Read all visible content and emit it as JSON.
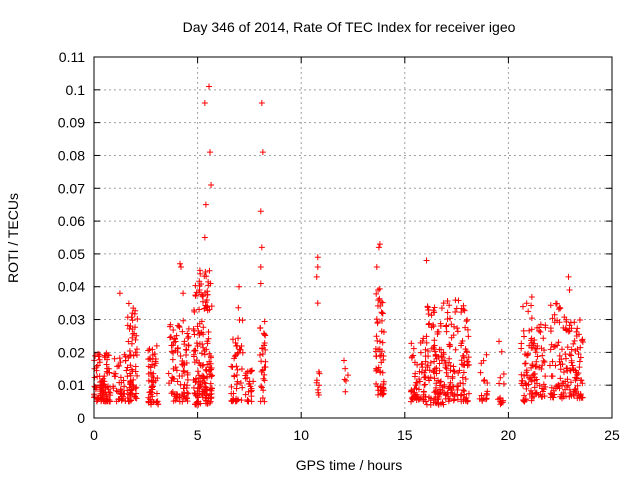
{
  "chart_data": {
    "type": "scatter",
    "title": "Day 346 of 2014, Rate Of TEC Index for receiver igeo",
    "xlabel": "GPS time / hours",
    "ylabel": "ROTI / TECUs",
    "xlim": [
      0,
      25
    ],
    "ylim": [
      0,
      0.11
    ],
    "xticks": [
      "0",
      "5",
      "10",
      "15",
      "20",
      "25"
    ],
    "yticks": [
      "0",
      "0.01",
      "0.02",
      "0.03",
      "0.04",
      "0.05",
      "0.06",
      "0.07",
      "0.08",
      "0.09",
      "0.1",
      "0.11"
    ],
    "grid": true,
    "marker": "plus",
    "color": "#ff0000",
    "notable_points": [
      {
        "x": 5.55,
        "y": 0.101
      },
      {
        "x": 5.35,
        "y": 0.096
      },
      {
        "x": 8.1,
        "y": 0.096
      },
      {
        "x": 5.6,
        "y": 0.081
      },
      {
        "x": 8.15,
        "y": 0.081
      },
      {
        "x": 5.65,
        "y": 0.071
      },
      {
        "x": 5.4,
        "y": 0.065
      },
      {
        "x": 8.05,
        "y": 0.063
      },
      {
        "x": 5.35,
        "y": 0.055
      },
      {
        "x": 13.8,
        "y": 0.053
      },
      {
        "x": 13.75,
        "y": 0.052
      },
      {
        "x": 8.1,
        "y": 0.052
      },
      {
        "x": 10.8,
        "y": 0.049
      },
      {
        "x": 16.05,
        "y": 0.048
      },
      {
        "x": 4.15,
        "y": 0.047
      },
      {
        "x": 4.2,
        "y": 0.046
      },
      {
        "x": 8.05,
        "y": 0.046
      },
      {
        "x": 10.8,
        "y": 0.046
      },
      {
        "x": 13.65,
        "y": 0.046
      },
      {
        "x": 10.75,
        "y": 0.043
      },
      {
        "x": 22.9,
        "y": 0.043
      },
      {
        "x": 8.05,
        "y": 0.041
      },
      {
        "x": 7.0,
        "y": 0.04
      },
      {
        "x": 22.95,
        "y": 0.039
      },
      {
        "x": 1.25,
        "y": 0.038
      },
      {
        "x": 4.3,
        "y": 0.038
      },
      {
        "x": 10.8,
        "y": 0.035
      }
    ],
    "clusters": [
      {
        "x": [
          0.0,
          0.8
        ],
        "y": [
          0.005,
          0.02
        ],
        "n": 90
      },
      {
        "x": [
          0.9,
          1.6
        ],
        "y": [
          0.005,
          0.02
        ],
        "n": 40
      },
      {
        "x": [
          1.6,
          2.1
        ],
        "y": [
          0.005,
          0.035
        ],
        "n": 70
      },
      {
        "x": [
          2.6,
          3.1
        ],
        "y": [
          0.004,
          0.022
        ],
        "n": 55
      },
      {
        "x": [
          3.6,
          4.6
        ],
        "y": [
          0.005,
          0.03
        ],
        "n": 90
      },
      {
        "x": [
          4.8,
          5.7
        ],
        "y": [
          0.004,
          0.045
        ],
        "n": 170
      },
      {
        "x": [
          6.6,
          7.2
        ],
        "y": [
          0.005,
          0.035
        ],
        "n": 45
      },
      {
        "x": [
          7.3,
          7.7
        ],
        "y": [
          0.005,
          0.015
        ],
        "n": 25
      },
      {
        "x": [
          8.0,
          8.3
        ],
        "y": [
          0.005,
          0.032
        ],
        "n": 30
      },
      {
        "x": [
          10.7,
          10.9
        ],
        "y": [
          0.007,
          0.015
        ],
        "n": 8
      },
      {
        "x": [
          12.0,
          12.3
        ],
        "y": [
          0.008,
          0.018
        ],
        "n": 6
      },
      {
        "x": [
          13.6,
          14.0
        ],
        "y": [
          0.007,
          0.04
        ],
        "n": 60
      },
      {
        "x": [
          15.3,
          16.0
        ],
        "y": [
          0.005,
          0.025
        ],
        "n": 60
      },
      {
        "x": [
          16.0,
          17.0
        ],
        "y": [
          0.004,
          0.035
        ],
        "n": 110
      },
      {
        "x": [
          17.0,
          18.1
        ],
        "y": [
          0.005,
          0.037
        ],
        "n": 110
      },
      {
        "x": [
          18.6,
          19.0
        ],
        "y": [
          0.005,
          0.02
        ],
        "n": 18
      },
      {
        "x": [
          19.5,
          19.8
        ],
        "y": [
          0.004,
          0.025
        ],
        "n": 15
      },
      {
        "x": [
          20.6,
          21.2
        ],
        "y": [
          0.005,
          0.037
        ],
        "n": 60
      },
      {
        "x": [
          21.2,
          21.8
        ],
        "y": [
          0.006,
          0.03
        ],
        "n": 50
      },
      {
        "x": [
          22.0,
          22.8
        ],
        "y": [
          0.006,
          0.035
        ],
        "n": 70
      },
      {
        "x": [
          22.8,
          23.6
        ],
        "y": [
          0.006,
          0.03
        ],
        "n": 75
      }
    ]
  }
}
